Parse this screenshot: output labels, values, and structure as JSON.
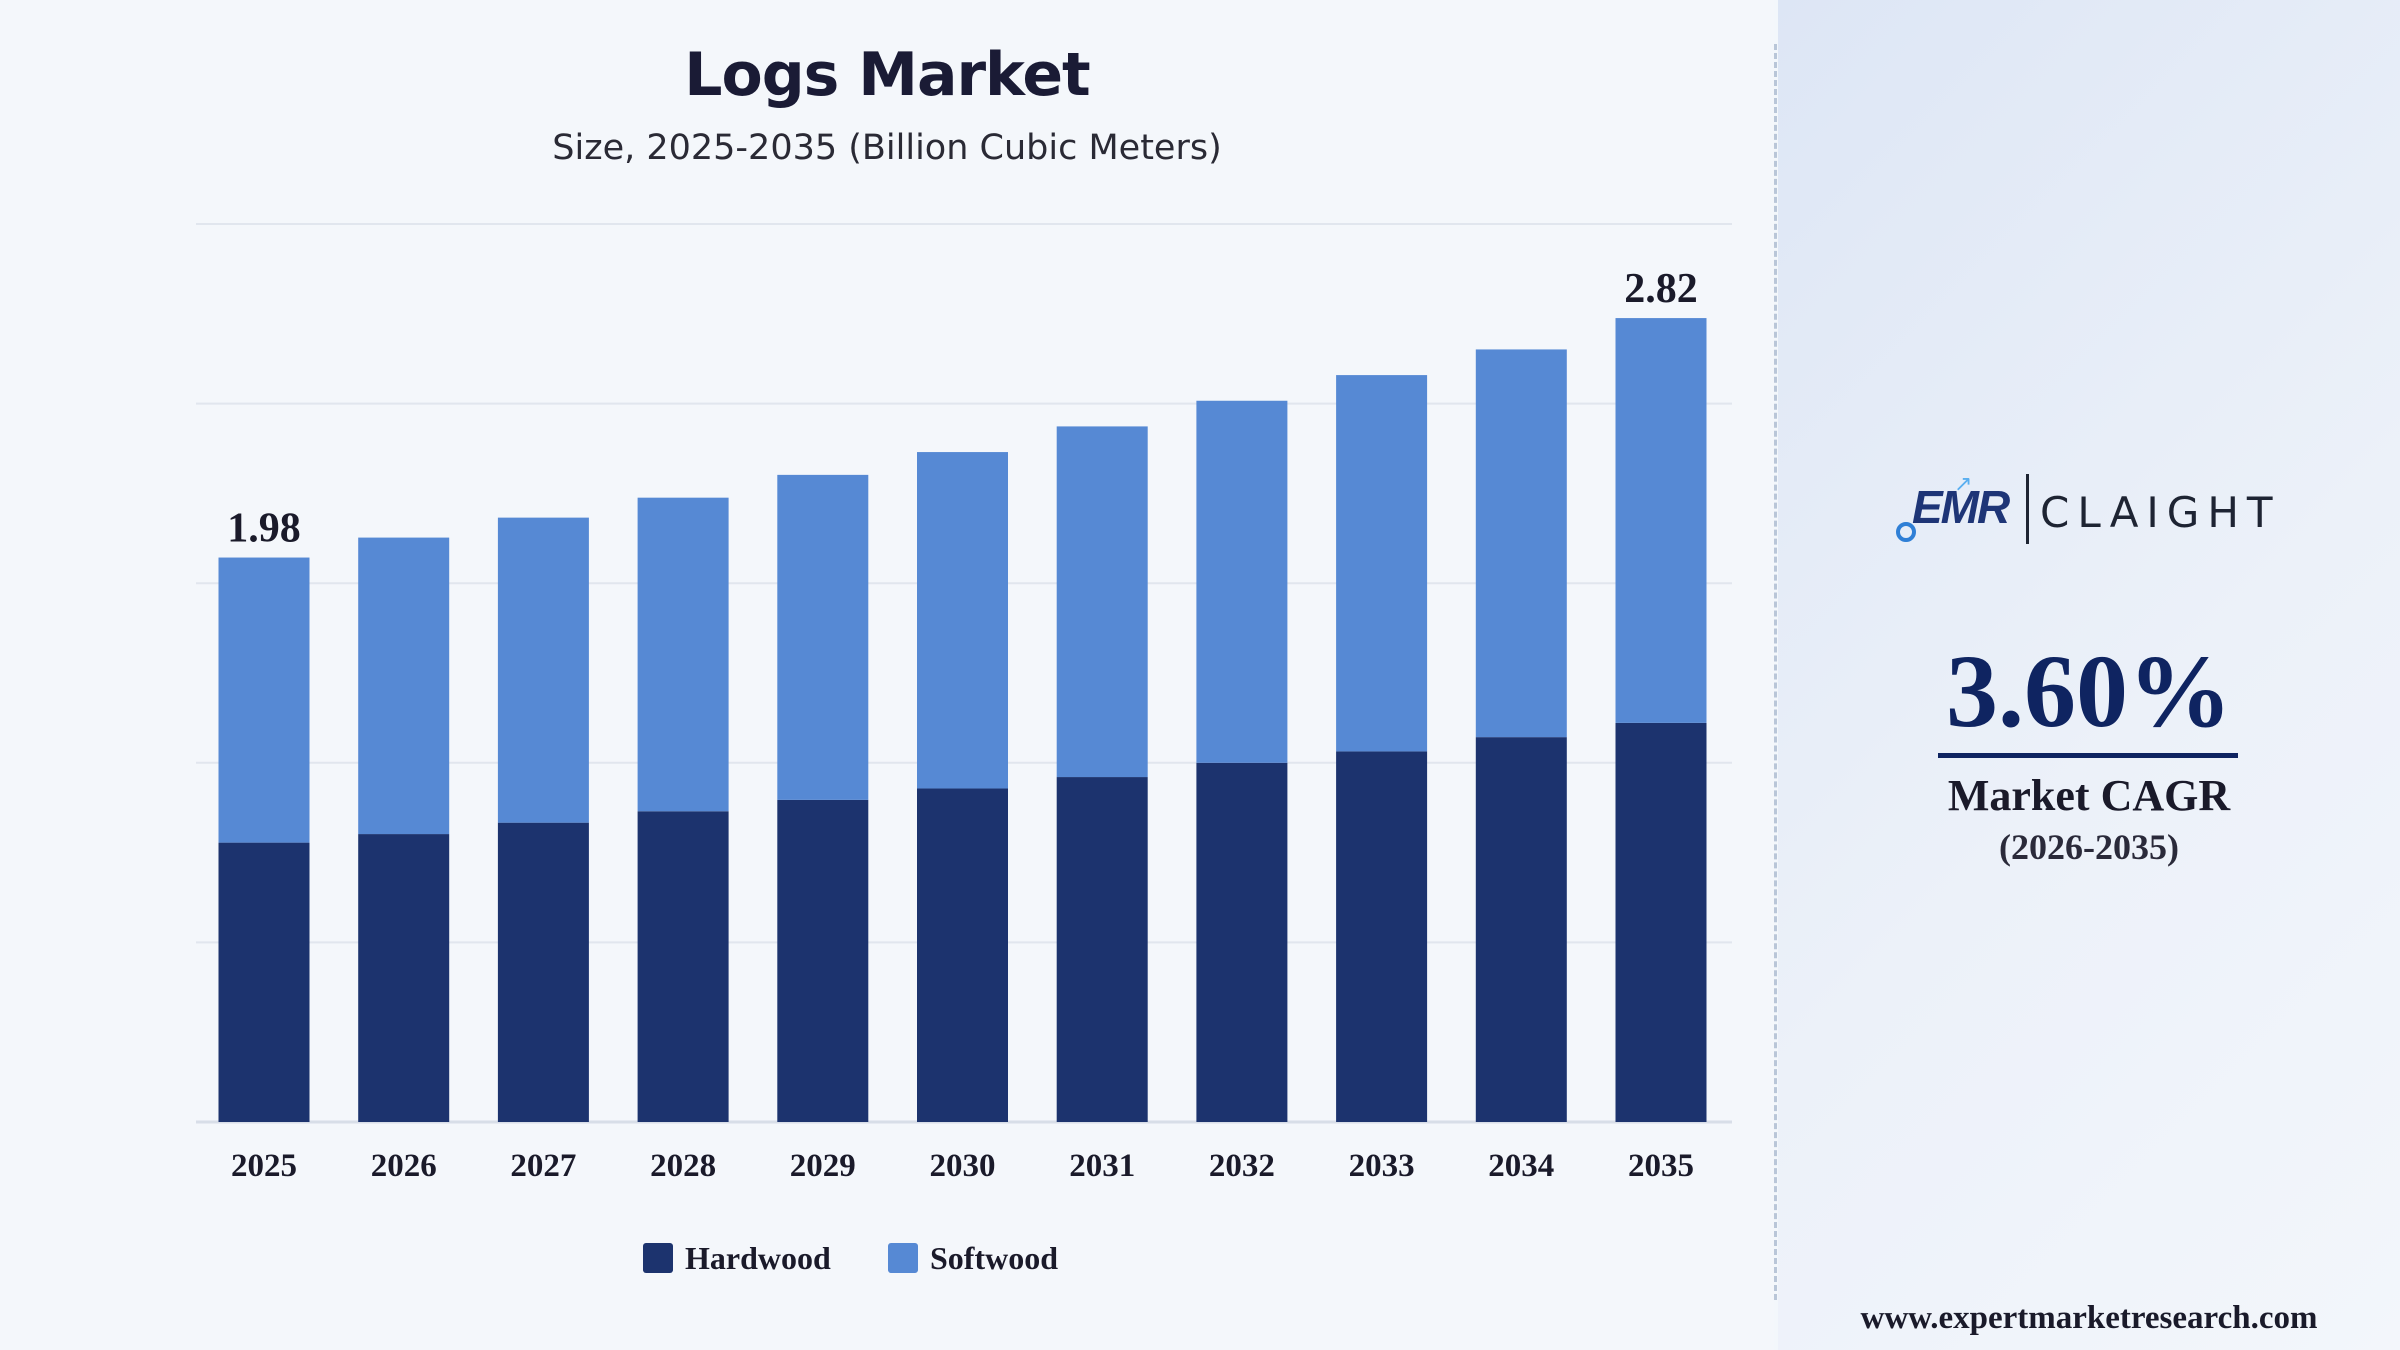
{
  "chart_data": {
    "type": "bar",
    "stacked": true,
    "title": "Logs Market",
    "subtitle": "Size, 2025-2035 (Billion Cubic Meters)",
    "categories": [
      "2025",
      "2026",
      "2027",
      "2028",
      "2029",
      "2030",
      "2031",
      "2032",
      "2033",
      "2034",
      "2035"
    ],
    "series": [
      {
        "name": "Hardwood",
        "color": "#1c336e",
        "values": [
          0.98,
          1.01,
          1.05,
          1.09,
          1.13,
          1.17,
          1.21,
          1.26,
          1.3,
          1.35,
          1.4
        ]
      },
      {
        "name": "Softwood",
        "color": "#5689d4",
        "values": [
          1.0,
          1.04,
          1.07,
          1.1,
          1.14,
          1.18,
          1.23,
          1.27,
          1.32,
          1.36,
          1.42
        ]
      }
    ],
    "data_labels": [
      {
        "category": "2025",
        "text": "1.98"
      },
      {
        "category": "2035",
        "text": "2.82"
      }
    ],
    "ylim": [
      0,
      3.15
    ],
    "grid": true,
    "legend_position": "bottom-center",
    "colors": {
      "hardwood": "#1c336e",
      "softwood": "#5689d4",
      "gridline": "#e1e6ee",
      "axis": "#d8dee8"
    }
  },
  "sidebar": {
    "logo_left": "EMR",
    "logo_right": "CLAIGHT",
    "cagr_value": "3.60%",
    "cagr_label": "Market CAGR",
    "cagr_period": "(2026-2035)",
    "website": "www.expertmarketresearch.com"
  }
}
